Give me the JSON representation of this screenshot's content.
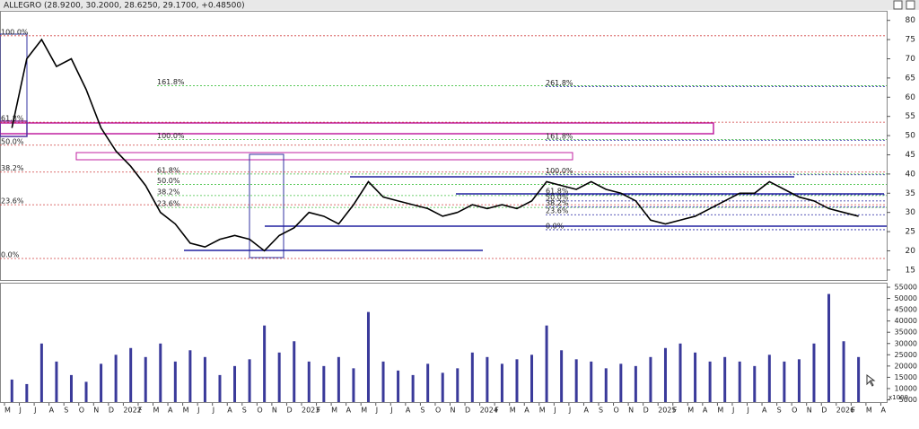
{
  "chart_data": [
    {
      "type": "line",
      "title": "ALLEGRO (28.9200, 30.2000, 28.6250, 29.1700, +0.48500)",
      "categories": [
        "M",
        "J",
        "J",
        "A",
        "S",
        "O",
        "N",
        "D",
        "2022",
        "F",
        "M",
        "A",
        "M",
        "J",
        "J",
        "A",
        "S",
        "O",
        "N",
        "D",
        "2023",
        "F",
        "M",
        "A",
        "M",
        "J",
        "J",
        "A",
        "S",
        "O",
        "N",
        "D",
        "2024",
        "F",
        "M",
        "A",
        "M",
        "J",
        "J",
        "A",
        "S",
        "O",
        "N",
        "D",
        "2025",
        "F",
        "M",
        "A",
        "M",
        "J",
        "J",
        "A",
        "S",
        "O",
        "N",
        "D",
        "2026",
        "F",
        "M",
        "A"
      ],
      "series": [
        {
          "name": "ALLEGRO",
          "color": "#000000",
          "values": [
            52,
            70,
            75,
            68,
            70,
            62,
            52,
            46,
            42,
            37,
            30,
            27,
            22,
            21,
            23,
            24,
            23,
            20,
            24,
            26,
            30,
            29,
            27,
            32,
            38,
            34,
            33,
            32,
            31,
            29,
            30,
            32,
            31,
            32,
            31,
            33,
            38,
            37,
            36,
            38,
            36,
            35,
            33,
            28,
            27,
            28,
            29,
            31,
            33,
            35,
            35,
            38,
            36,
            34,
            33,
            31,
            30,
            29,
            null,
            null
          ]
        }
      ],
      "ylim": [
        12.4,
        82.5
      ],
      "yticks": [
        15,
        20,
        25,
        30,
        35,
        40,
        45,
        50,
        55,
        60,
        65,
        70,
        75,
        80
      ],
      "levels": [
        {
          "label": "100.0%",
          "value": 76,
          "color": "#d04040"
        },
        {
          "label": "61.8%",
          "value": 53.5,
          "color": "#d04040"
        },
        {
          "label": "50.0%",
          "value": 47.5,
          "color": "#d04040"
        },
        {
          "label": "38.2%",
          "value": 40.5,
          "color": "#d04040"
        },
        {
          "label": "23.6%",
          "value": 32,
          "color": "#d04040"
        },
        {
          "label": "0.0%",
          "value": 18,
          "color": "#d04040"
        },
        {
          "label": "161.8%",
          "value": 63,
          "color": "#40c040"
        },
        {
          "label": "100.0%",
          "value": 49,
          "color": "#40c040"
        },
        {
          "label": "61.8%",
          "value": 40,
          "color": "#40c040"
        },
        {
          "label": "50.0%",
          "value": 37.3,
          "color": "#40c040"
        },
        {
          "label": "38.2%",
          "value": 34.4,
          "color": "#40c040"
        },
        {
          "label": "23.6%",
          "value": 31.3,
          "color": "#40c040"
        },
        {
          "label": "261.8%",
          "value": 62.8,
          "color": "#2020a0"
        },
        {
          "label": "161.8%",
          "value": 48.8,
          "color": "#2020a0"
        },
        {
          "label": "100.0%",
          "value": 39.8,
          "color": "#2020a0"
        },
        {
          "label": "61.8%",
          "value": 34.6,
          "color": "#2020a0"
        },
        {
          "label": "50.0%",
          "value": 33,
          "color": "#2020a0"
        },
        {
          "label": "38.2%",
          "value": 31.4,
          "color": "#2020a0"
        },
        {
          "label": "23.6%",
          "value": 29.4,
          "color": "#2020a0"
        },
        {
          "label": "0.0%",
          "value": 25.5,
          "color": "#2020a0"
        }
      ]
    },
    {
      "type": "bar",
      "unit_label": "x1000",
      "color": "#3a3a9a",
      "values": [
        14000,
        12000,
        30000,
        22000,
        16000,
        13000,
        21000,
        25000,
        28000,
        24000,
        30000,
        22000,
        27000,
        24000,
        16000,
        20000,
        23000,
        38000,
        26000,
        31000,
        22000,
        20000,
        24000,
        19000,
        44000,
        22000,
        18000,
        16000,
        21000,
        17000,
        19000,
        26000,
        24000,
        21000,
        23000,
        25000,
        38000,
        27000,
        23000,
        22000,
        19000,
        21000,
        20000,
        24000,
        28000,
        30000,
        26000,
        22000,
        24000,
        22000,
        20000,
        25000,
        22000,
        23000,
        30000,
        52000,
        31000,
        24000,
        null,
        null
      ],
      "ylim": [
        4000,
        57000
      ],
      "yticks": [
        5000,
        10000,
        15000,
        20000,
        25000,
        30000,
        35000,
        40000,
        45000,
        50000,
        55000
      ]
    }
  ]
}
